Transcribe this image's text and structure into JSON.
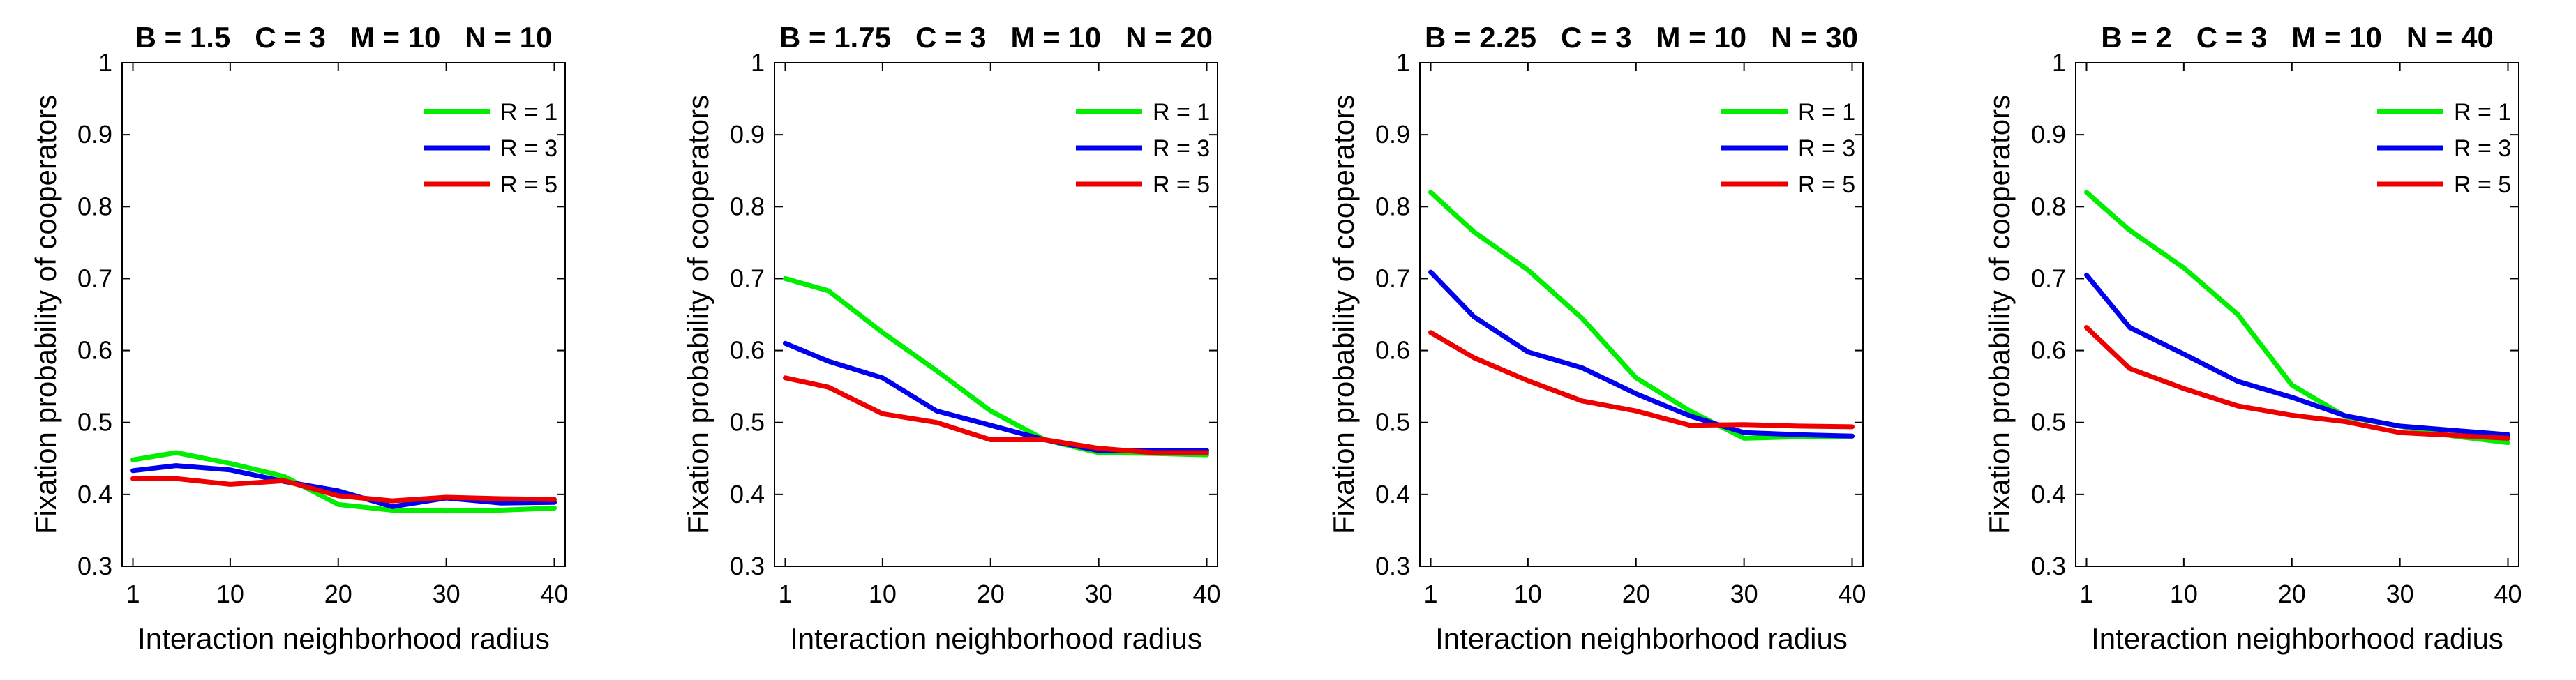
{
  "chart_data": [
    {
      "type": "line",
      "title": "B = 1.5   C = 3   M = 10   N = 10",
      "xlabel": "Interaction neighborhood radius",
      "ylabel": "Fixation probability of cooperators",
      "xlim": [
        0,
        41
      ],
      "ylim": [
        0.3,
        1
      ],
      "xticks": [
        1,
        10,
        20,
        30,
        40
      ],
      "yticks": [
        0.3,
        0.4,
        0.5,
        0.6,
        0.7,
        0.8,
        0.9,
        1
      ],
      "x": [
        1,
        5,
        10,
        15,
        20,
        25,
        30,
        35,
        40
      ],
      "legend_position": "top-right",
      "series": [
        {
          "name": "R = 1",
          "color": "#00ee00",
          "values": [
            0.448,
            0.458,
            0.443,
            0.425,
            0.386,
            0.378,
            0.377,
            0.378,
            0.381
          ]
        },
        {
          "name": "R = 3",
          "color": "#0000ee",
          "values": [
            0.433,
            0.44,
            0.434,
            0.418,
            0.405,
            0.383,
            0.395,
            0.388,
            0.389
          ]
        },
        {
          "name": "R = 5",
          "color": "#ee0000",
          "values": [
            0.422,
            0.422,
            0.414,
            0.419,
            0.398,
            0.391,
            0.396,
            0.394,
            0.393
          ]
        }
      ]
    },
    {
      "type": "line",
      "title": "B = 1.75   C = 3   M = 10   N = 20",
      "xlabel": "Interaction neighborhood radius",
      "ylabel": "Fixation probability of cooperators",
      "xlim": [
        0,
        41
      ],
      "ylim": [
        0.3,
        1
      ],
      "xticks": [
        1,
        10,
        20,
        30,
        40
      ],
      "yticks": [
        0.3,
        0.4,
        0.5,
        0.6,
        0.7,
        0.8,
        0.9,
        1
      ],
      "x": [
        1,
        5,
        10,
        15,
        20,
        25,
        30,
        35,
        40
      ],
      "legend_position": "top-right",
      "series": [
        {
          "name": "R = 1",
          "color": "#00ee00",
          "values": [
            0.7,
            0.683,
            0.625,
            0.572,
            0.516,
            0.476,
            0.458,
            0.457,
            0.455
          ]
        },
        {
          "name": "R = 3",
          "color": "#0000ee",
          "values": [
            0.61,
            0.585,
            0.562,
            0.516,
            0.496,
            0.476,
            0.461,
            0.461,
            0.461
          ]
        },
        {
          "name": "R = 5",
          "color": "#ee0000",
          "values": [
            0.562,
            0.549,
            0.512,
            0.5,
            0.476,
            0.476,
            0.464,
            0.458,
            0.458
          ]
        }
      ]
    },
    {
      "type": "line",
      "title": "B = 2.25   C = 3   M = 10   N = 30",
      "xlabel": "Interaction neighborhood radius",
      "ylabel": "Fixation probability of cooperators",
      "xlim": [
        0,
        41
      ],
      "ylim": [
        0.3,
        1
      ],
      "xticks": [
        1,
        10,
        20,
        30,
        40
      ],
      "yticks": [
        0.3,
        0.4,
        0.5,
        0.6,
        0.7,
        0.8,
        0.9,
        1
      ],
      "x": [
        1,
        5,
        10,
        15,
        20,
        25,
        30,
        35,
        40
      ],
      "legend_position": "top-right",
      "series": [
        {
          "name": "R = 1",
          "color": "#00ee00",
          "values": [
            0.82,
            0.765,
            0.712,
            0.645,
            0.562,
            0.516,
            0.478,
            0.48,
            0.481
          ]
        },
        {
          "name": "R = 3",
          "color": "#0000ee",
          "values": [
            0.709,
            0.647,
            0.598,
            0.576,
            0.54,
            0.509,
            0.486,
            0.483,
            0.481
          ]
        },
        {
          "name": "R = 5",
          "color": "#ee0000",
          "values": [
            0.625,
            0.59,
            0.558,
            0.53,
            0.516,
            0.496,
            0.497,
            0.495,
            0.494
          ]
        }
      ]
    },
    {
      "type": "line",
      "title": "B = 2   C = 3   M = 10   N = 40",
      "xlabel": "Interaction neighborhood radius",
      "ylabel": "Fixation probability of cooperators",
      "xlim": [
        0,
        41
      ],
      "ylim": [
        0.3,
        1
      ],
      "xticks": [
        1,
        10,
        20,
        30,
        40
      ],
      "yticks": [
        0.3,
        0.4,
        0.5,
        0.6,
        0.7,
        0.8,
        0.9,
        1
      ],
      "x": [
        1,
        5,
        10,
        15,
        20,
        25,
        30,
        35,
        40
      ],
      "legend_position": "top-right",
      "series": [
        {
          "name": "R = 1",
          "color": "#00ee00",
          "values": [
            0.82,
            0.767,
            0.715,
            0.65,
            0.552,
            0.508,
            0.495,
            0.481,
            0.472
          ]
        },
        {
          "name": "R = 3",
          "color": "#0000ee",
          "values": [
            0.705,
            0.632,
            0.595,
            0.557,
            0.535,
            0.509,
            0.495,
            0.489,
            0.483
          ]
        },
        {
          "name": "R = 5",
          "color": "#ee0000",
          "values": [
            0.632,
            0.575,
            0.547,
            0.523,
            0.51,
            0.501,
            0.486,
            0.482,
            0.478
          ]
        }
      ]
    }
  ]
}
